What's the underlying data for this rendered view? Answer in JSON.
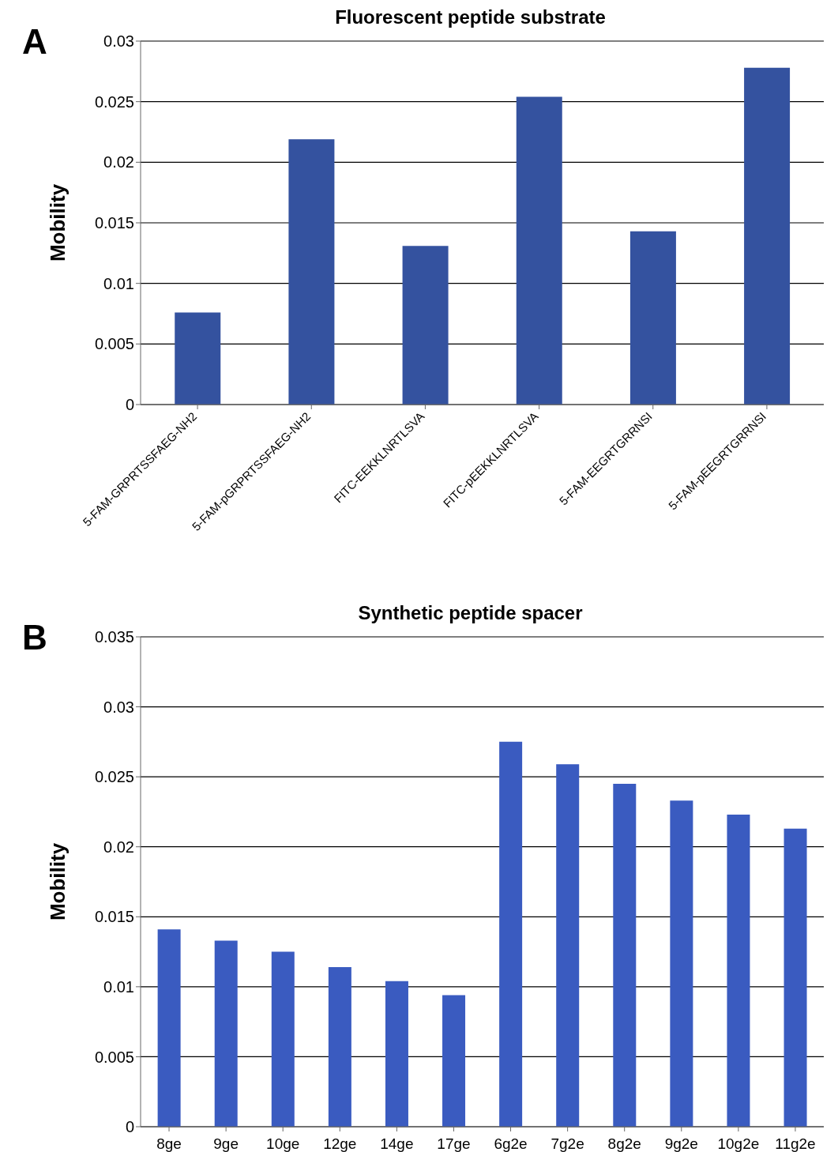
{
  "chart_data": [
    {
      "type": "bar",
      "title": "Fluorescent peptide substrate",
      "ylabel": "Mobility",
      "annotations": [
        "A"
      ],
      "categories": [
        "5-FAM-GRPRTSSFAEG-NH2",
        "5-FAM-pGRPRTSSFAEG-NH2",
        "FITC-EEKKLNRTLSVA",
        "FITC-pEEKKLNRTLSVA",
        "5-FAM-EEGRTGRRNSI",
        "5-FAM-pEEGRTGRRNSI"
      ],
      "values": [
        0.0076,
        0.0219,
        0.0131,
        0.0254,
        0.0143,
        0.0278
      ],
      "color": "#34529f",
      "ylim": [
        0,
        0.03
      ],
      "yticks": [
        0,
        0.005,
        0.01,
        0.015,
        0.02,
        0.025,
        0.03
      ],
      "grid": "y",
      "legend": false
    },
    {
      "type": "bar",
      "title": "Synthetic peptide spacer",
      "ylabel": "Mobility",
      "annotations": [
        "B"
      ],
      "categories": [
        "8ge",
        "9ge",
        "10ge",
        "12ge",
        "14ge",
        "17ge",
        "6g2e",
        "7g2e",
        "8g2e",
        "9g2e",
        "10g2e",
        "11g2e"
      ],
      "values": [
        0.0141,
        0.0133,
        0.0125,
        0.0114,
        0.0104,
        0.0094,
        0.0275,
        0.0259,
        0.0245,
        0.0233,
        0.0223,
        0.0213
      ],
      "color": "#3a5bc0",
      "ylim": [
        0,
        0.035
      ],
      "yticks": [
        0,
        0.005,
        0.01,
        0.015,
        0.02,
        0.025,
        0.03,
        0.035
      ],
      "grid": "y",
      "legend": false
    }
  ]
}
